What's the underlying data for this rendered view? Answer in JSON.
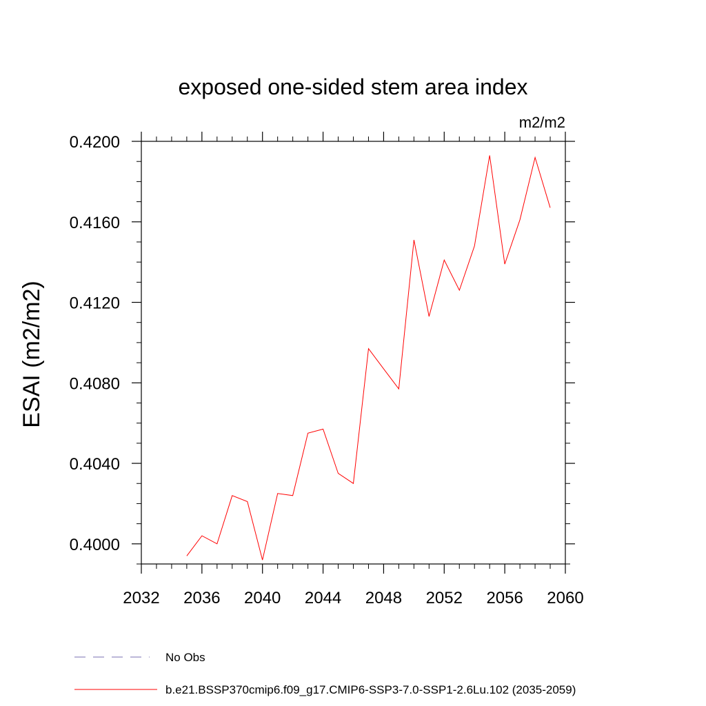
{
  "chart_data": {
    "type": "line",
    "title": "exposed one-sided stem area index",
    "units_label": "m2/m2",
    "ylabel": "ESAI  (m2/m2)",
    "xlabel": "",
    "xlim": [
      2032,
      2060
    ],
    "ylim": [
      0.399,
      0.42
    ],
    "x_ticks": [
      2032,
      2036,
      2040,
      2044,
      2048,
      2052,
      2056,
      2060
    ],
    "x_tick_labels": [
      "2032",
      "2036",
      "2040",
      "2044",
      "2048",
      "2052",
      "2056",
      "2060"
    ],
    "y_ticks": [
      0.4,
      0.404,
      0.408,
      0.412,
      0.416,
      0.42
    ],
    "y_tick_labels": [
      "0.4000",
      "0.4040",
      "0.4080",
      "0.4120",
      "0.4160",
      "0.4200"
    ],
    "x_minor_step": 1,
    "y_minor_step": 0.001,
    "series": [
      {
        "name": "b.e21.BSSP370cmip6.f09_g17.CMIP6-SSP3-7.0-SSP1-2.6Lu.102 (2035-2059)",
        "color": "#ff0000",
        "x": [
          2035,
          2036,
          2037,
          2038,
          2039,
          2040,
          2041,
          2042,
          2043,
          2044,
          2045,
          2046,
          2047,
          2048,
          2049,
          2050,
          2051,
          2052,
          2053,
          2054,
          2055,
          2056,
          2057,
          2058,
          2059
        ],
        "values": [
          0.3994,
          0.4004,
          0.4,
          0.4024,
          0.4021,
          0.3992,
          0.4025,
          0.4024,
          0.4055,
          0.4057,
          0.4035,
          0.403,
          0.4097,
          0.4087,
          0.4077,
          0.4151,
          0.4113,
          0.4141,
          0.4126,
          0.4148,
          0.4193,
          0.4139,
          0.4161,
          0.4192,
          0.4167
        ]
      }
    ],
    "legend": [
      {
        "label": "No Obs",
        "style": "dashed",
        "color": "#7a6fb0"
      },
      {
        "label": "b.e21.BSSP370cmip6.f09_g17.CMIP6-SSP3-7.0-SSP1-2.6Lu.102 (2035-2059)",
        "style": "solid",
        "color": "#ff0000"
      }
    ],
    "legend_position": "bottom"
  }
}
